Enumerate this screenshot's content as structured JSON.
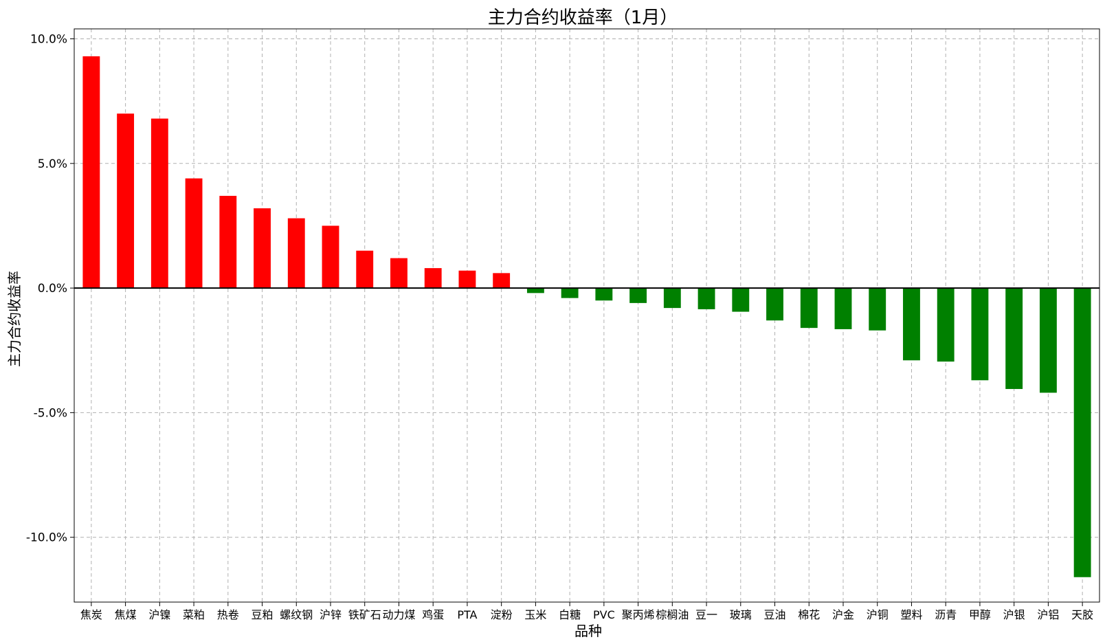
{
  "chart_data": {
    "type": "bar",
    "title": "主力合约收益率（1月）",
    "xlabel": "品种",
    "ylabel": "主力合约收益率",
    "categories": [
      "焦炭",
      "焦煤",
      "沪镍",
      "菜粕",
      "热卷",
      "豆粕",
      "螺纹钢",
      "沪锌",
      "铁矿石",
      "动力煤",
      "鸡蛋",
      "PTA",
      "淀粉",
      "玉米",
      "白糖",
      "PVC",
      "聚丙烯",
      "棕榈油",
      "豆一",
      "玻璃",
      "豆油",
      "棉花",
      "沪金",
      "沪铜",
      "塑料",
      "沥青",
      "甲醇",
      "沪银",
      "沪铝",
      "天胶"
    ],
    "values": [
      9.3,
      7.0,
      6.8,
      4.4,
      3.7,
      3.2,
      2.8,
      2.5,
      1.5,
      1.2,
      0.8,
      0.7,
      0.6,
      -0.2,
      -0.4,
      -0.5,
      -0.6,
      -0.8,
      -0.85,
      -0.95,
      -1.3,
      -1.6,
      -1.65,
      -1.7,
      -2.9,
      -2.95,
      -3.7,
      -4.05,
      -4.2,
      -11.6
    ],
    "ylim": [
      -12.6,
      10.4
    ],
    "yticks": [
      10,
      5,
      0,
      -5,
      -10
    ],
    "ytick_labels": [
      "10.0%",
      "5.0%",
      "0.0%",
      "-5.0%",
      "-10.0%"
    ],
    "unit": "%",
    "grid": true,
    "colors": {
      "positive": "#ff0000",
      "negative": "#008000",
      "zero_line": "#000000",
      "grid": "#b0b0b0",
      "frame": "#000000"
    }
  }
}
